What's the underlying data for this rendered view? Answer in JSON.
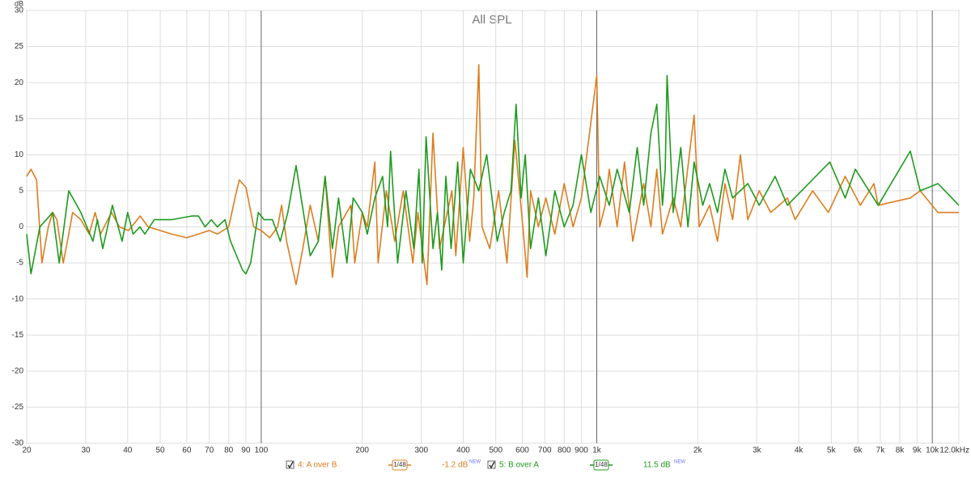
{
  "chart_data": {
    "type": "line",
    "title": "All SPL",
    "y_label": "dB",
    "log_x": true,
    "grid": true,
    "xlim": [
      20,
      12000
    ],
    "ylim": [
      -30,
      30
    ],
    "yticks": [
      -30,
      -25,
      -20,
      -15,
      -10,
      -5,
      0,
      5,
      10,
      15,
      20,
      25,
      30
    ],
    "xticks": [
      20,
      30,
      40,
      50,
      60,
      70,
      80,
      90,
      100,
      200,
      300,
      400,
      500,
      600,
      700,
      800,
      900,
      {
        "value": 1000,
        "label": "1k"
      },
      {
        "value": 2000,
        "label": "2k"
      },
      {
        "value": 3000,
        "label": "3k"
      },
      {
        "value": 4000,
        "label": "4k"
      },
      {
        "value": 5000,
        "label": "5k"
      },
      {
        "value": 6000,
        "label": "6k"
      },
      {
        "value": 7000,
        "label": "7k"
      },
      {
        "value": 8000,
        "label": "8k"
      },
      {
        "value": 9000,
        "label": "9k"
      },
      {
        "value": 10000,
        "label": "10k"
      },
      {
        "value": 12000,
        "label": "12.0kHz"
      }
    ],
    "series": [
      {
        "name": "4: A over B",
        "color": "#dc7d1e",
        "smoothing": "1/48",
        "offset": "-1.2 dB",
        "badge": "NEW",
        "x": [
          20,
          20.6,
          21.4,
          22.2,
          23.2,
          23.9,
          24.6,
          25.7,
          26.7,
          27.4,
          29,
          30.7,
          32,
          33.2,
          35.8,
          37.8,
          40.2,
          43.6,
          46,
          50,
          54,
          60,
          65,
          70,
          74,
          80,
          83.5,
          86,
          90,
          95,
          100,
          106,
          112,
          115,
          119,
          127,
          133,
          140,
          148,
          155,
          163,
          170,
          185,
          190,
          200,
          207,
          218,
          223,
          236,
          250,
          265,
          283,
          293,
          312,
          325,
          340,
          370,
          380,
          400,
          418,
          430,
          445,
          455,
          480,
          510,
          540,
          570,
          605,
          620,
          635,
          670,
          705,
          750,
          800,
          850,
          900,
          1000,
          1020,
          1060,
          1090,
          1150,
          1210,
          1280,
          1380,
          1450,
          1510,
          1570,
          1690,
          1780,
          1950,
          2020,
          2170,
          2290,
          2410,
          2540,
          2680,
          2820,
          3050,
          3300,
          3700,
          3900,
          4400,
          4900,
          5500,
          6100,
          6700,
          6900,
          8600,
          9200,
          10400,
          12000
        ],
        "values": [
          7,
          8,
          6.5,
          -5,
          0,
          2,
          1,
          -5,
          -1,
          2,
          1,
          -1,
          2,
          -1,
          2,
          0,
          -0.5,
          1.5,
          0,
          -0.5,
          -1,
          -1.5,
          -1,
          -0.5,
          -1,
          0,
          4,
          6.5,
          5.5,
          0,
          -0.5,
          -1.5,
          0,
          3,
          -2,
          -8,
          -3,
          3,
          -2,
          7,
          -7,
          0,
          3,
          -5,
          2,
          0,
          9,
          -5,
          5,
          -2,
          5,
          -5,
          2,
          -8,
          13,
          -3,
          5,
          -4,
          11,
          -2,
          4,
          22.5,
          0,
          -3,
          5,
          -5,
          12,
          -1,
          -7,
          5,
          0,
          4,
          -1,
          6,
          0,
          4,
          21,
          0,
          3,
          8,
          0,
          9,
          -2,
          6,
          0,
          8,
          -1,
          4,
          0,
          15.5,
          0,
          3,
          -2,
          6,
          1,
          10,
          1,
          5,
          2,
          4,
          1,
          5,
          2,
          7,
          3,
          6,
          3,
          4,
          5,
          2,
          2
        ]
      },
      {
        "name": "5: B over A",
        "color": "#1e9a1e",
        "smoothing": "1/48",
        "offset": "11.5 dB",
        "badge": "NEW",
        "x": [
          20,
          20.6,
          21.9,
          23.9,
          25,
          26.7,
          29,
          31.5,
          32.5,
          33.7,
          36,
          38.5,
          40,
          41.5,
          43.5,
          45,
          48,
          54,
          62,
          65,
          68,
          71,
          74,
          78,
          81,
          88,
          90,
          93,
          98,
          102,
          108,
          114,
          120,
          127,
          140,
          148,
          155,
          163,
          170,
          180,
          188,
          200,
          207,
          218,
          230,
          238,
          243,
          255,
          270,
          285,
          295,
          302,
          310,
          325,
          335,
          345,
          355,
          368,
          385,
          400,
          420,
          445,
          470,
          505,
          530,
          555,
          575,
          595,
          612,
          635,
          670,
          705,
          750,
          800,
          850,
          900,
          960,
          1020,
          1090,
          1150,
          1250,
          1320,
          1380,
          1450,
          1510,
          1570,
          1600,
          1620,
          1690,
          1780,
          1870,
          1950,
          2070,
          2170,
          2290,
          2410,
          2540,
          2820,
          3050,
          3400,
          3700,
          4950,
          5500,
          5900,
          6900,
          8600,
          9200,
          10400,
          12000
        ],
        "values": [
          -1,
          -6.5,
          0,
          2,
          -5,
          5,
          2,
          -2,
          1,
          -3,
          3,
          -2,
          2,
          -1,
          0,
          -1,
          1,
          1,
          1.5,
          1.5,
          0,
          1,
          0,
          1,
          -2,
          -6,
          -6.5,
          -5,
          2,
          1,
          1,
          -2,
          2,
          8.5,
          -4,
          -2,
          7,
          -3,
          4,
          -5,
          4,
          2,
          -1,
          4,
          7,
          0,
          10.5,
          -5,
          5,
          -3,
          8,
          -5,
          12.5,
          -3,
          2,
          -6,
          7,
          -3,
          9,
          -5,
          8,
          5,
          10,
          -2,
          2,
          5,
          17,
          4,
          10,
          -3,
          4,
          -4,
          5,
          0,
          3,
          10,
          2,
          7,
          3,
          8,
          2,
          11,
          3,
          13,
          17,
          3,
          8,
          21,
          2,
          11,
          0,
          9,
          3,
          6,
          2,
          8,
          4,
          6,
          3,
          7,
          3,
          9,
          4,
          8,
          3,
          10.5,
          5,
          6,
          3
        ]
      }
    ]
  }
}
